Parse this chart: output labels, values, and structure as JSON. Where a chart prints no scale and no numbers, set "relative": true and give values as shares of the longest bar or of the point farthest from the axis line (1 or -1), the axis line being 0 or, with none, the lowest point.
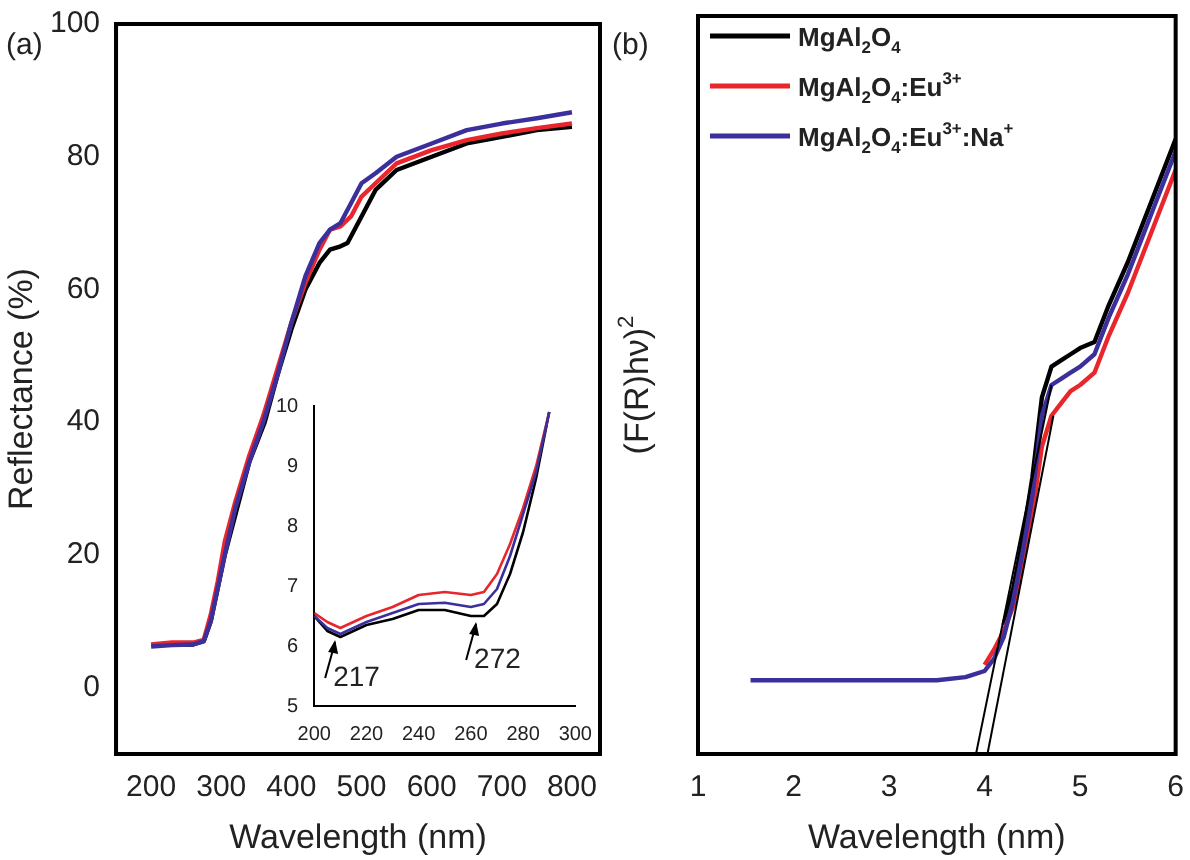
{
  "chart_data": [
    {
      "type": "line",
      "title": "(a)",
      "xlabel": "Wavelength (nm)",
      "ylabel": "Reflectance (%)",
      "xlim": [
        150,
        840
      ],
      "xticks": [
        200,
        300,
        400,
        500,
        600,
        700,
        800
      ],
      "ylim": [
        -10,
        100
      ],
      "yticks": [
        0,
        20,
        40,
        60,
        80,
        100
      ],
      "grid": false,
      "legend": false,
      "marker": "none",
      "line_style": "solid",
      "series": [
        {
          "color": "#000000",
          "x": [
            230,
            260,
            275,
            285,
            295,
            305,
            320,
            340,
            362,
            380,
            400,
            420,
            440,
            455,
            470,
            480,
            490,
            500,
            520,
            550,
            600,
            650,
            700,
            750,
            800
          ],
          "values": [
            6.5,
            6.5,
            7,
            10,
            15,
            20,
            26,
            34,
            40,
            47,
            54,
            60,
            64,
            66,
            66.5,
            67,
            69,
            71,
            75,
            78,
            80,
            82,
            83,
            84,
            84.5
          ]
        },
        {
          "color": "#e8262c",
          "x": [
            200,
            230,
            260,
            275,
            285,
            295,
            305,
            320,
            340,
            360,
            380,
            400,
            420,
            440,
            455,
            470,
            485,
            500,
            520,
            550,
            600,
            650,
            700,
            750,
            800
          ],
          "values": [
            6.5,
            6.8,
            6.8,
            7.2,
            11,
            16,
            22,
            28,
            35,
            41,
            48,
            55,
            61,
            66,
            69,
            69.5,
            71,
            74,
            76,
            79,
            81,
            82.5,
            83.5,
            84.3,
            85
          ]
        },
        {
          "color": "#3b2f9c",
          "x": [
            200,
            230,
            260,
            275,
            285,
            295,
            305,
            320,
            340,
            360,
            380,
            400,
            420,
            440,
            455,
            470,
            485,
            500,
            520,
            550,
            600,
            650,
            700,
            750,
            800
          ],
          "values": [
            6.2,
            6.4,
            6.5,
            7,
            10,
            15,
            20,
            27,
            34,
            40,
            47,
            55,
            62,
            67,
            69,
            70,
            73,
            76,
            77.5,
            80,
            82,
            84,
            85,
            85.8,
            86.7
          ]
        }
      ]
    },
    {
      "type": "line",
      "xlim": [
        200,
        300
      ],
      "xticks": [
        200,
        220,
        240,
        260,
        280,
        300
      ],
      "ylim": [
        5,
        10
      ],
      "yticks": [
        5,
        6,
        7,
        8,
        9,
        10
      ],
      "grid": false,
      "legend": false,
      "marker": "none",
      "line_style": "solid",
      "annotations": [
        {
          "text": "217",
          "x": 208,
          "y": 6.2
        },
        {
          "text": "272",
          "x": 262,
          "y": 6.5
        }
      ],
      "series": [
        {
          "color": "#000000",
          "x": [
            200,
            205,
            210,
            215,
            220,
            230,
            240,
            250,
            260,
            265,
            270,
            275,
            280,
            285,
            290
          ],
          "values": [
            6.5,
            6.25,
            6.15,
            6.25,
            6.35,
            6.45,
            6.6,
            6.6,
            6.5,
            6.5,
            6.7,
            7.2,
            7.9,
            8.8,
            9.9
          ]
        },
        {
          "color": "#e8262c",
          "x": [
            200,
            205,
            210,
            215,
            220,
            230,
            240,
            250,
            260,
            265,
            270,
            275,
            280,
            285,
            290
          ],
          "values": [
            6.55,
            6.4,
            6.3,
            6.4,
            6.5,
            6.65,
            6.85,
            6.9,
            6.85,
            6.9,
            7.2,
            7.7,
            8.3,
            9.0,
            9.9
          ]
        },
        {
          "color": "#3b2f9c",
          "x": [
            200,
            205,
            210,
            215,
            220,
            230,
            240,
            250,
            260,
            265,
            270,
            275,
            280,
            285,
            290
          ],
          "values": [
            6.5,
            6.3,
            6.2,
            6.3,
            6.4,
            6.55,
            6.7,
            6.72,
            6.65,
            6.7,
            6.95,
            7.5,
            8.2,
            8.9,
            9.9
          ]
        }
      ]
    },
    {
      "type": "line",
      "title": "(b)",
      "xlabel": "Wavelength (nm)",
      "ylabel": "(F(R)hν)$^{2}$",
      "relative": true,
      "tick_labels": "x",
      "xlim": [
        1,
        6
      ],
      "xticks": [
        1,
        2,
        3,
        4,
        5,
        6
      ],
      "grid": false,
      "legend": "top left",
      "marker": "none",
      "line_style": "solid",
      "series": [
        {
          "name": "MgAl$_{2}$O$_{4}$",
          "color": "#000000",
          "x": [
            4.2,
            4.3,
            4.4,
            4.5,
            4.6,
            4.7,
            4.8,
            4.9,
            5.0,
            5.15,
            5.3,
            5.5,
            5.75,
            6.0
          ],
          "values": [
            0.21,
            0.27,
            0.35,
            0.45,
            0.58,
            0.63,
            0.64,
            0.65,
            0.66,
            0.67,
            0.73,
            0.8,
            0.9,
            1.0
          ]
        },
        {
          "name": "MgAl$_{2}$O$_{4}$:Eu$^{3+}$",
          "color": "#e8262c",
          "x": [
            4.0,
            4.1,
            4.2,
            4.3,
            4.4,
            4.5,
            4.6,
            4.7,
            4.8,
            4.9,
            5.0,
            5.15,
            5.3,
            5.5,
            5.75,
            6.0
          ],
          "values": [
            0.145,
            0.17,
            0.2,
            0.24,
            0.31,
            0.39,
            0.5,
            0.55,
            0.57,
            0.59,
            0.6,
            0.62,
            0.68,
            0.75,
            0.85,
            0.95
          ]
        },
        {
          "name": "MgAl$_{2}$O$_{4}$:Eu$^{3+}$:Na$^{+}$",
          "color": "#3b2f9c",
          "x": [
            1.55,
            2.5,
            3.5,
            3.8,
            4.0,
            4.1,
            4.2,
            4.3,
            4.4,
            4.5,
            4.6,
            4.7,
            4.8,
            4.9,
            5.0,
            5.15,
            5.3,
            5.5,
            5.75,
            6.0
          ],
          "values": [
            0.12,
            0.12,
            0.12,
            0.125,
            0.135,
            0.155,
            0.19,
            0.25,
            0.33,
            0.42,
            0.55,
            0.6,
            0.61,
            0.62,
            0.63,
            0.65,
            0.71,
            0.78,
            0.88,
            0.98
          ]
        },
        {
          "type": "line",
          "color": "#000000",
          "x": [
            3.91,
            4.7
          ],
          "values": [
            0,
            0.6
          ]
        },
        {
          "type": "line",
          "color": "#000000",
          "x": [
            4.03,
            4.72
          ],
          "values": [
            0,
            0.55
          ]
        }
      ]
    }
  ]
}
